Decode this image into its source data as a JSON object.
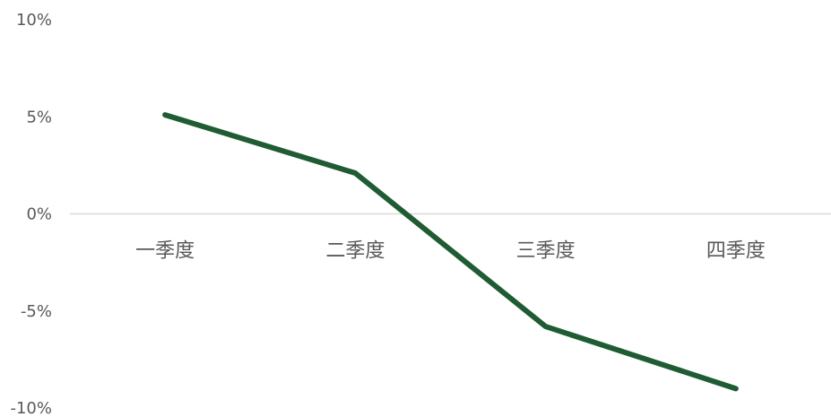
{
  "chart_data": {
    "type": "line",
    "title": "",
    "xlabel": "",
    "ylabel": "",
    "categories": [
      "一季度",
      "二季度",
      "三季度",
      "四季度"
    ],
    "series": [
      {
        "values": [
          5.1,
          2.1,
          -5.8,
          -9.0
        ]
      }
    ],
    "ylim": [
      -10,
      10
    ],
    "yticks": [
      10,
      5,
      0,
      -5,
      -10
    ],
    "ytick_labels": [
      "10%",
      "5%",
      "0%",
      "-5%",
      "-10%"
    ],
    "grid": false,
    "legend": "none",
    "line_color": "#1f5b33",
    "axis_color": "#d9d9d9",
    "label_color": "#595959"
  }
}
